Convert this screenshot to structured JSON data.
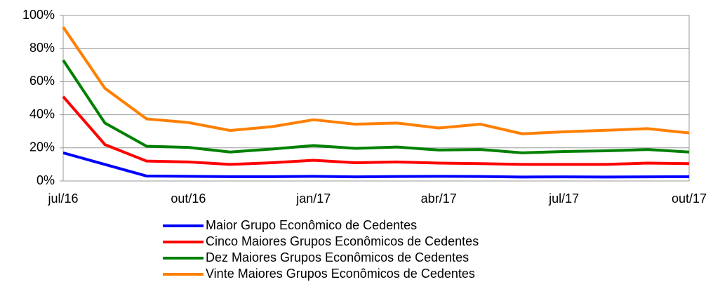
{
  "chart_data": {
    "type": "line",
    "categories": [
      "jul/16",
      null,
      null,
      "out/16",
      null,
      null,
      "jan/17",
      null,
      null,
      "abr/17",
      null,
      null,
      "jul/17",
      null,
      null,
      "out/17"
    ],
    "series": [
      {
        "name": "Maior Grupo Econômico de Cedentes",
        "color": "#0000ff",
        "values": [
          17,
          10,
          3,
          2.8,
          2.6,
          2.6,
          2.8,
          2.5,
          2.7,
          2.8,
          2.7,
          2.4,
          2.5,
          2.4,
          2.5,
          2.6
        ]
      },
      {
        "name": "Cinco Maiores Grupos Econômicos de Cedentes",
        "color": "#ff0000",
        "values": [
          51,
          22,
          12,
          11.5,
          10,
          11,
          12.5,
          11,
          11.5,
          10.8,
          10.5,
          10,
          10,
          10,
          10.8,
          10.5
        ]
      },
      {
        "name": "Dez Maiores Grupos Econômicos de Cedentes",
        "color": "#008000",
        "values": [
          73,
          35,
          21,
          20.3,
          17.5,
          19.3,
          21.4,
          19.7,
          20.5,
          18.7,
          19,
          17,
          17.8,
          18.2,
          19,
          17.5
        ]
      },
      {
        "name": "Vinte Maiores Grupos Econômicos de Cedentes",
        "color": "#ff7f00",
        "values": [
          93,
          56,
          37.5,
          35.3,
          30.5,
          32.8,
          37,
          34.3,
          35,
          32,
          34.3,
          28.5,
          29.7,
          30.6,
          31.6,
          29
        ]
      }
    ],
    "ylim": [
      0,
      100
    ],
    "yticks": [
      {
        "value": 0,
        "label": "0%"
      },
      {
        "value": 20,
        "label": "20%"
      },
      {
        "value": 40,
        "label": "40%"
      },
      {
        "value": 60,
        "label": "60%"
      },
      {
        "value": 80,
        "label": "80%"
      },
      {
        "value": 100,
        "label": "100%"
      }
    ],
    "grid": true,
    "legend": "bottom"
  }
}
